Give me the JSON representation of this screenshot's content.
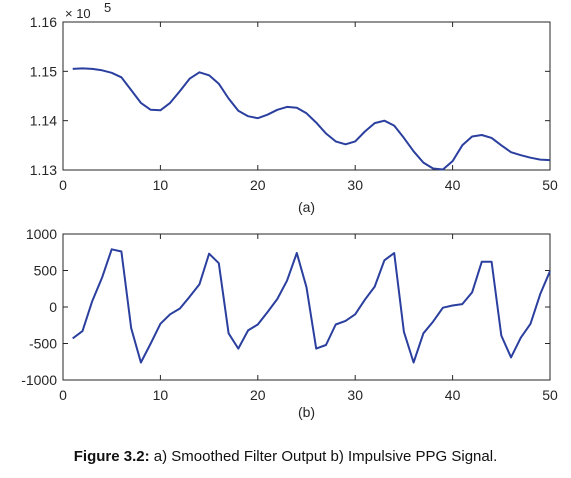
{
  "caption": {
    "bold": "Figure 3.2:",
    "text": " a) Smoothed Filter Output b) Impulsive PPG Signal."
  },
  "chart_data": [
    {
      "type": "line",
      "subtitle": "(a)",
      "x_exponent_label": "× 10",
      "exponent": "5",
      "xlim": [
        0,
        50
      ],
      "ylim": [
        1.13,
        1.16
      ],
      "x_ticks": [
        0,
        10,
        20,
        30,
        40,
        50
      ],
      "y_ticks": [
        1.13,
        1.14,
        1.15,
        1.16
      ],
      "y_tick_labels": [
        "1.13",
        "1.14",
        "1.15",
        "1.16"
      ],
      "line_color": "#2b3f9f",
      "x": [
        1,
        2,
        3,
        4,
        5,
        6,
        7,
        8,
        9,
        10,
        11,
        12,
        13,
        14,
        15,
        16,
        17,
        18,
        19,
        20,
        21,
        22,
        23,
        24,
        25,
        26,
        27,
        28,
        29,
        30,
        31,
        32,
        33,
        34,
        35,
        36,
        37,
        38,
        39,
        40,
        41,
        42,
        43,
        44,
        45,
        46,
        47,
        48,
        49,
        50
      ],
      "values": [
        1.1505,
        1.1506,
        1.1505,
        1.1502,
        1.1497,
        1.1488,
        1.1462,
        1.1436,
        1.1422,
        1.1421,
        1.1436,
        1.146,
        1.1485,
        1.1498,
        1.1492,
        1.1475,
        1.1445,
        1.142,
        1.1409,
        1.1405,
        1.1412,
        1.1422,
        1.1428,
        1.1426,
        1.1415,
        1.1396,
        1.1374,
        1.1358,
        1.1352,
        1.1358,
        1.1378,
        1.1395,
        1.14,
        1.139,
        1.1365,
        1.1338,
        1.1315,
        1.1303,
        1.1301,
        1.1318,
        1.135,
        1.1368,
        1.1371,
        1.1365,
        1.135,
        1.1336,
        1.133,
        1.1325,
        1.1321,
        1.132
      ]
    },
    {
      "type": "line",
      "subtitle": "(b)",
      "xlim": [
        0,
        50
      ],
      "ylim": [
        -1000,
        1000
      ],
      "x_ticks": [
        0,
        10,
        20,
        30,
        40,
        50
      ],
      "y_ticks": [
        -1000,
        -500,
        0,
        500,
        1000
      ],
      "y_tick_labels": [
        "-1000",
        "-500",
        "0",
        "500",
        "1000"
      ],
      "line_color": "#2b3f9f",
      "x": [
        1,
        2,
        3,
        4,
        5,
        6,
        7,
        8,
        9,
        10,
        11,
        12,
        13,
        14,
        15,
        16,
        17,
        18,
        19,
        20,
        21,
        22,
        23,
        24,
        25,
        26,
        27,
        28,
        29,
        30,
        31,
        32,
        33,
        34,
        35,
        36,
        37,
        38,
        39,
        40,
        41,
        42,
        43,
        44,
        45,
        46,
        47,
        48,
        49,
        50
      ],
      "values": [
        -430,
        -330,
        80,
        400,
        790,
        760,
        -290,
        -760,
        -500,
        -230,
        -100,
        -20,
        140,
        310,
        730,
        600,
        -360,
        -570,
        -320,
        -240,
        -70,
        110,
        360,
        740,
        270,
        -570,
        -520,
        -240,
        -190,
        -100,
        100,
        280,
        640,
        740,
        -340,
        -760,
        -360,
        -200,
        -10,
        20,
        40,
        200,
        620,
        620,
        -390,
        -690,
        -420,
        -230,
        180,
        490
      ]
    }
  ]
}
